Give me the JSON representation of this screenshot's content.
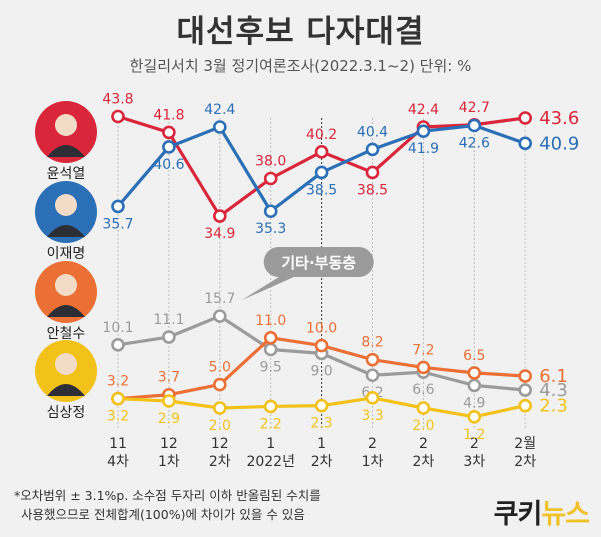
{
  "header": {
    "title": "대선후보 다자대결",
    "subtitle": "한길리서치 3월 정기여론조사(2022.3.1~2) 단위: %"
  },
  "footnote": {
    "line1": "*오차범위 ± 3.1%p. 소수점 두자리 이하 반올림된 수치를",
    "line2": "사용했으므로 전체합계(100%)에 차이가 있을 수 있음"
  },
  "logo": {
    "part1": "쿠키",
    "part2": "뉴스"
  },
  "colors": {
    "yoon": "#d9263a",
    "lee": "#2b6fb6",
    "ahn": "#eb7035",
    "shim": "#f2c21b",
    "other": "#9b9b9b"
  },
  "chart_data": {
    "type": "line",
    "categories": [
      [
        "11",
        "4차"
      ],
      [
        "12",
        "1차"
      ],
      [
        "12",
        "2차"
      ],
      [
        "1",
        "2022년"
      ],
      [
        "1",
        "2차"
      ],
      [
        "2",
        "1차"
      ],
      [
        "2",
        "2차"
      ],
      [
        "2",
        "3차"
      ],
      [
        "2월",
        "2차"
      ]
    ],
    "ylim": [
      0,
      45
    ],
    "series": [
      {
        "name": "윤석열",
        "color": "#d9263a",
        "values": [
          43.8,
          41.8,
          34.9,
          38.0,
          40.2,
          38.5,
          42.4,
          42.7,
          43.6
        ]
      },
      {
        "name": "이재명",
        "color": "#2b6fb6",
        "values": [
          35.7,
          40.6,
          42.4,
          35.3,
          38.5,
          40.4,
          41.9,
          42.6,
          40.9
        ]
      },
      {
        "name": "기타·부동층",
        "color": "#9b9b9b",
        "values": [
          10.1,
          11.1,
          15.7,
          9.5,
          9.0,
          6.2,
          6.6,
          4.9,
          4.3
        ]
      },
      {
        "name": "안철수",
        "color": "#eb7035",
        "values": [
          3.2,
          3.7,
          5.0,
          11.0,
          10.0,
          8.2,
          7.2,
          6.5,
          6.1
        ]
      },
      {
        "name": "심상정",
        "color": "#f2c21b",
        "values": [
          3.2,
          2.9,
          2.0,
          2.2,
          2.3,
          3.3,
          2.0,
          1.2,
          2.3
        ]
      }
    ],
    "candidates": [
      "윤석열",
      "이재명",
      "안철수",
      "심상정"
    ],
    "callout": "기타·부동층"
  }
}
